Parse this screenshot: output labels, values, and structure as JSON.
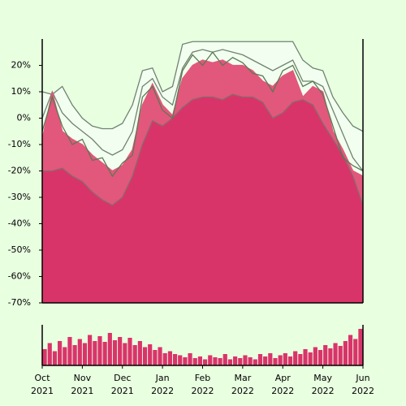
{
  "chart_data": [
    {
      "type": "area",
      "x": [
        0,
        0.25,
        0.5,
        0.75,
        1,
        1.25,
        1.5,
        1.75,
        2,
        2.25,
        2.5,
        2.75,
        3,
        3.25,
        3.5,
        3.75,
        4,
        4.25,
        4.5,
        4.75,
        5,
        5.25,
        5.5,
        5.75,
        6,
        6.25,
        6.5,
        6.75,
        7,
        7.25,
        7.5,
        7.75,
        8
      ],
      "xlim": [
        0,
        8
      ],
      "xticks": [
        {
          "value": 0,
          "label": "Oct 2021"
        },
        {
          "value": 1,
          "label": "Nov 2021"
        },
        {
          "value": 2,
          "label": "Dec 2021"
        },
        {
          "value": 3,
          "label": "Jan 2022"
        },
        {
          "value": 4,
          "label": "Feb 2022"
        },
        {
          "value": 5,
          "label": "Mar 2022"
        },
        {
          "value": 6,
          "label": "Apr 2022"
        },
        {
          "value": 7,
          "label": "May 2022"
        },
        {
          "value": 8,
          "label": "Jun 2022"
        }
      ],
      "ylim": [
        -70,
        30
      ],
      "yticks": [
        {
          "value": 20,
          "label": "20%"
        },
        {
          "value": 10,
          "label": "10%"
        },
        {
          "value": 0,
          "label": "0%"
        },
        {
          "value": -10,
          "label": "-10%"
        },
        {
          "value": -20,
          "label": "-20%"
        },
        {
          "value": -30,
          "label": "-30%"
        },
        {
          "value": -40,
          "label": "-40%"
        },
        {
          "value": -50,
          "label": "-50%"
        },
        {
          "value": -60,
          "label": "-60%"
        },
        {
          "value": -70,
          "label": "-70%"
        }
      ],
      "series": [
        {
          "color": "#f2fff0",
          "stroke": "#6f8270",
          "fill": true,
          "values": [
            10,
            9,
            12,
            5,
            0,
            -3,
            -4,
            -4,
            -2,
            5,
            18,
            19,
            10,
            12,
            28,
            29,
            29,
            29,
            29,
            29,
            29,
            29,
            29,
            29,
            29,
            29,
            22,
            19,
            18,
            8,
            2,
            -3,
            -5
          ]
        },
        {
          "color": "none",
          "stroke": "#6f8270",
          "fill": false,
          "values": [
            0,
            10,
            2,
            -2,
            -5,
            -8,
            -12,
            -14,
            -12,
            -5,
            12,
            15,
            8,
            5,
            19,
            25,
            26,
            25,
            26,
            25,
            24,
            22,
            20,
            18,
            20,
            22,
            14,
            14,
            12,
            3,
            -6,
            -15,
            -20
          ]
        },
        {
          "color": "#e2577c",
          "stroke": "#e2577c",
          "fill": true,
          "values": [
            -8,
            10,
            -5,
            -8,
            -10,
            -14,
            -17,
            -20,
            -18,
            -12,
            5,
            13,
            5,
            1,
            15,
            20,
            22,
            21,
            22,
            20,
            20,
            18,
            14,
            12,
            16,
            18,
            8,
            12,
            10,
            -5,
            -12,
            -20,
            -22
          ]
        },
        {
          "color": "#d9346a",
          "stroke": "#8a6a6a",
          "fill": true,
          "values": [
            -20,
            -20,
            -19,
            -22,
            -24,
            -28,
            -31,
            -33,
            -30,
            -22,
            -10,
            -1,
            -3,
            0,
            4,
            7,
            8,
            8,
            7,
            9,
            8,
            8,
            6,
            0,
            2,
            6,
            7,
            5,
            -2,
            -8,
            -14,
            -22,
            -33
          ]
        },
        {
          "color": "none",
          "stroke": "#5a7a50",
          "fill": false,
          "values": [
            -5,
            8,
            -3,
            -10,
            -8,
            -16,
            -15,
            -22,
            -17,
            -14,
            8,
            12,
            3,
            0,
            18,
            24,
            20,
            25,
            20,
            23,
            21,
            17,
            16,
            10,
            18,
            20,
            12,
            14,
            9,
            -3,
            -15,
            -18,
            -20
          ]
        }
      ]
    },
    {
      "type": "bar",
      "color": "#d9346a",
      "ylim": [
        0,
        100
      ],
      "values": [
        40,
        55,
        35,
        60,
        45,
        70,
        50,
        65,
        55,
        75,
        60,
        72,
        58,
        80,
        62,
        70,
        55,
        68,
        50,
        60,
        45,
        52,
        38,
        45,
        30,
        35,
        28,
        25,
        20,
        30,
        18,
        22,
        15,
        25,
        20,
        18,
        28,
        15,
        22,
        18,
        25,
        20,
        15,
        28,
        22,
        30,
        18,
        25,
        30,
        22,
        35,
        28,
        40,
        32,
        45,
        38,
        50,
        42,
        55,
        48,
        60,
        75,
        65,
        90
      ]
    }
  ]
}
